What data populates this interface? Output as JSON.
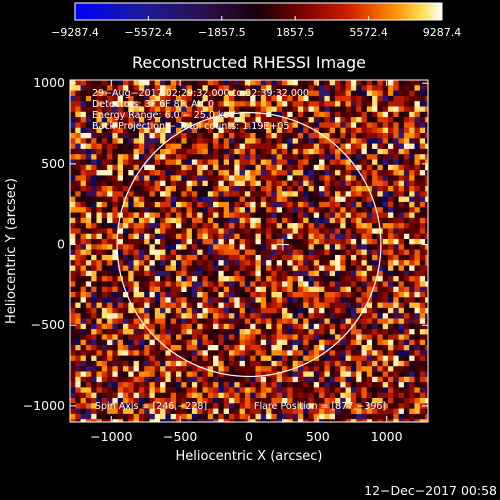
{
  "colorbar": {
    "ticks": [
      "-9287.4",
      "-5572.4",
      "-1857.5",
      "1857.5",
      "5572.4",
      "9287.4"
    ],
    "range": [
      -9287.4,
      9287.4
    ]
  },
  "chart_data": {
    "type": "heatmap",
    "title": "Reconstructed RHESSI Image",
    "xlabel": "Heliocentric X (arcsec)",
    "ylabel": "Heliocentric Y (arcsec)",
    "xlim": [
      -1300,
      1300
    ],
    "ylim": [
      -1100,
      1020
    ],
    "x_ticks": [
      -1000,
      -500,
      0,
      500,
      1000
    ],
    "y_ticks": [
      1000,
      500,
      0,
      -500,
      -1000
    ],
    "x_tick_labels": [
      "−1000",
      "−500",
      "0",
      "500",
      "1000"
    ],
    "y_tick_labels": [
      "1000",
      "500",
      "0",
      "−500",
      "−1000"
    ],
    "solar_limb_radius": 958,
    "flare_position": [
      877,
      -396
    ],
    "spin_axis": [
      246,
      -228
    ],
    "annotations": [
      "29−Aug−2017 02:29:32.000 to 02:39:32.000",
      "Detectors: 3F 6F 8F, Att 0",
      "Energy Range: 6.0 − 25.0 keV",
      "Back Projection − Total counts: 1.19E+05"
    ],
    "spin_axis_label": "Spin Axis = [246,−228]",
    "flare_position_label": "Flare Position = [877,−396]"
  },
  "footer": {
    "timestamp": "12−Dec−2017 00:58"
  }
}
